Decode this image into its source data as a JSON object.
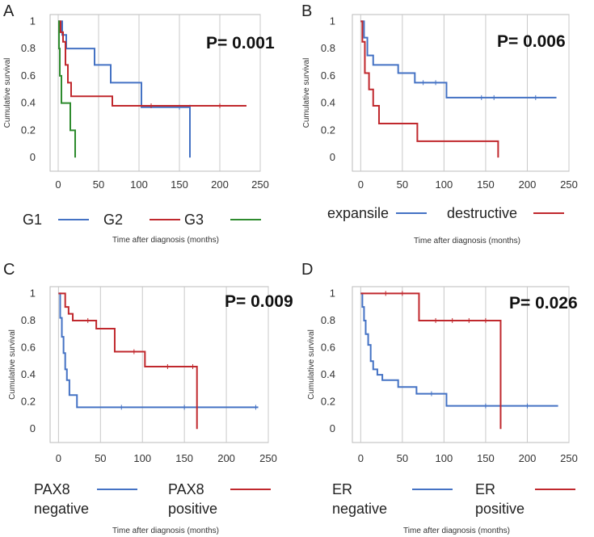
{
  "chart_data": [
    {
      "type": "line",
      "subtype": "kaplan-meier",
      "panel_label": "A",
      "p_value": "P= 0.001",
      "ylabel": "Cumulative survival",
      "xlabel": "Time after diagnosis (months)",
      "xlim": [
        -10,
        250
      ],
      "ylim": [
        -0.1,
        1.05
      ],
      "x_ticks": [
        0,
        50,
        100,
        150,
        200,
        250
      ],
      "y_ticks": [
        0,
        0.2,
        0.4,
        0.6,
        0.8,
        1
      ],
      "y_tick_labels": [
        "0",
        "0.2",
        "0.4",
        "0.6",
        "0.8",
        "1"
      ],
      "legend": [
        {
          "label": "G1",
          "color": "#4472c4"
        },
        {
          "label": "G2",
          "color": "#c0282d"
        },
        {
          "label": "G3",
          "color": "#2e8b2e"
        }
      ],
      "series": [
        {
          "name": "G1",
          "color": "#4472c4",
          "steps": [
            [
              0,
              1
            ],
            [
              5,
              0.9
            ],
            [
              10,
              0.8
            ],
            [
              45,
              0.68
            ],
            [
              65,
              0.55
            ],
            [
              103,
              0.37
            ],
            [
              163,
              0.0
            ]
          ],
          "censored": [
            [
              150,
              0.37
            ],
            [
              163,
              0.37
            ]
          ]
        },
        {
          "name": "G2",
          "color": "#c0282d",
          "steps": [
            [
              0,
              1
            ],
            [
              3,
              0.92
            ],
            [
              6,
              0.85
            ],
            [
              9,
              0.68
            ],
            [
              12,
              0.55
            ],
            [
              16,
              0.45
            ],
            [
              67,
              0.38
            ],
            [
              233,
              0.38
            ]
          ],
          "censored": [
            [
              115,
              0.38
            ],
            [
              200,
              0.38
            ]
          ]
        },
        {
          "name": "G3",
          "color": "#2e8b2e",
          "steps": [
            [
              0,
              1
            ],
            [
              1,
              0.8
            ],
            [
              2,
              0.6
            ],
            [
              4,
              0.4
            ],
            [
              15,
              0.2
            ],
            [
              21,
              0.0
            ]
          ],
          "censored": []
        }
      ]
    },
    {
      "type": "line",
      "subtype": "kaplan-meier",
      "panel_label": "B",
      "p_value": "P= 0.006",
      "ylabel": "Cumulative survival",
      "xlabel": "Time after diagnosis (months)",
      "xlim": [
        -10,
        250
      ],
      "ylim": [
        -0.1,
        1.05
      ],
      "x_ticks": [
        0,
        50,
        100,
        150,
        200,
        250
      ],
      "y_ticks": [
        0,
        0.2,
        0.4,
        0.6,
        0.8,
        1
      ],
      "y_tick_labels": [
        "0",
        "0.2",
        "0.4",
        "0.6",
        "0.8",
        "1"
      ],
      "legend": [
        {
          "label": "expansile",
          "color": "#4472c4"
        },
        {
          "label": "destructive",
          "color": "#c0282d"
        }
      ],
      "series": [
        {
          "name": "expansile",
          "color": "#4472c4",
          "steps": [
            [
              0,
              1
            ],
            [
              4,
              0.88
            ],
            [
              8,
              0.75
            ],
            [
              15,
              0.68
            ],
            [
              45,
              0.62
            ],
            [
              65,
              0.55
            ],
            [
              103,
              0.44
            ],
            [
              235,
              0.44
            ]
          ],
          "censored": [
            [
              75,
              0.55
            ],
            [
              90,
              0.55
            ],
            [
              145,
              0.44
            ],
            [
              160,
              0.44
            ],
            [
              210,
              0.44
            ]
          ]
        },
        {
          "name": "destructive",
          "color": "#c0282d",
          "steps": [
            [
              0,
              1
            ],
            [
              2,
              0.85
            ],
            [
              5,
              0.62
            ],
            [
              10,
              0.5
            ],
            [
              15,
              0.38
            ],
            [
              22,
              0.25
            ],
            [
              68,
              0.12
            ],
            [
              165,
              0.0
            ]
          ],
          "censored": []
        }
      ]
    },
    {
      "type": "line",
      "subtype": "kaplan-meier",
      "panel_label": "C",
      "p_value": "P= 0.009",
      "ylabel": "Cumulative survival",
      "xlabel": "Time after diagnosis (months)",
      "xlim": [
        -10,
        250
      ],
      "ylim": [
        -0.1,
        1.05
      ],
      "x_ticks": [
        0,
        50,
        100,
        150,
        200,
        250
      ],
      "y_ticks": [
        0,
        0.2,
        0.4,
        0.6,
        0.8,
        1
      ],
      "y_tick_labels": [
        "0",
        "0.2",
        "0.4",
        "0.6",
        "0.8",
        "1"
      ],
      "legend": [
        {
          "label": "PAX8 negative",
          "color": "#4472c4"
        },
        {
          "label": "PAX8 positive",
          "color": "#c0282d"
        }
      ],
      "series": [
        {
          "name": "PAX8 negative",
          "color": "#4472c4",
          "steps": [
            [
              0,
              1
            ],
            [
              2,
              0.82
            ],
            [
              4,
              0.68
            ],
            [
              6,
              0.56
            ],
            [
              8,
              0.44
            ],
            [
              10,
              0.36
            ],
            [
              13,
              0.25
            ],
            [
              22,
              0.16
            ],
            [
              238,
              0.16
            ]
          ],
          "censored": [
            [
              75,
              0.16
            ],
            [
              150,
              0.16
            ],
            [
              235,
              0.16
            ]
          ]
        },
        {
          "name": "PAX8 positive",
          "color": "#c0282d",
          "steps": [
            [
              0,
              1
            ],
            [
              8,
              0.9
            ],
            [
              12,
              0.85
            ],
            [
              17,
              0.8
            ],
            [
              45,
              0.74
            ],
            [
              67,
              0.57
            ],
            [
              103,
              0.46
            ],
            [
              165,
              0.0
            ]
          ],
          "censored": [
            [
              35,
              0.8
            ],
            [
              90,
              0.57
            ],
            [
              130,
              0.46
            ],
            [
              160,
              0.46
            ]
          ]
        }
      ]
    },
    {
      "type": "line",
      "subtype": "kaplan-meier",
      "panel_label": "D",
      "p_value": "P= 0.026",
      "ylabel": "Cumulative survival",
      "xlabel": "Time after diagnosis (months)",
      "xlim": [
        -10,
        250
      ],
      "ylim": [
        -0.1,
        1.05
      ],
      "x_ticks": [
        0,
        50,
        100,
        150,
        200,
        250
      ],
      "y_ticks": [
        0,
        0.2,
        0.4,
        0.6,
        0.8,
        1
      ],
      "y_tick_labels": [
        "0",
        "0.2",
        "0.4",
        "0.6",
        "0.8",
        "1"
      ],
      "legend": [
        {
          "label": "ER negative",
          "color": "#4472c4"
        },
        {
          "label": "ER positive",
          "color": "#c0282d"
        }
      ],
      "series": [
        {
          "name": "ER negative",
          "color": "#4472c4",
          "steps": [
            [
              0,
              1
            ],
            [
              2,
              0.9
            ],
            [
              4,
              0.8
            ],
            [
              6,
              0.7
            ],
            [
              9,
              0.62
            ],
            [
              12,
              0.5
            ],
            [
              15,
              0.44
            ],
            [
              20,
              0.4
            ],
            [
              26,
              0.36
            ],
            [
              45,
              0.31
            ],
            [
              67,
              0.26
            ],
            [
              103,
              0.17
            ],
            [
              237,
              0.17
            ]
          ],
          "censored": [
            [
              85,
              0.26
            ],
            [
              150,
              0.17
            ],
            [
              200,
              0.17
            ]
          ]
        },
        {
          "name": "ER positive",
          "color": "#c0282d",
          "steps": [
            [
              0,
              1
            ],
            [
              70,
              0.8
            ],
            [
              168,
              0.0
            ]
          ],
          "censored": [
            [
              30,
              1
            ],
            [
              50,
              1
            ],
            [
              90,
              0.8
            ],
            [
              110,
              0.8
            ],
            [
              130,
              0.8
            ],
            [
              150,
              0.8
            ]
          ]
        }
      ]
    }
  ]
}
